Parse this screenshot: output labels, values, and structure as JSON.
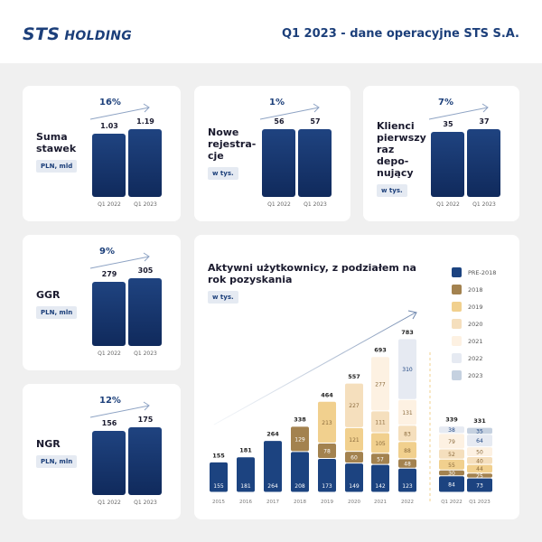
{
  "header": {
    "logo": "STS HOLDING",
    "title": "Q1 2023 - dane operacyjne STS S.A."
  },
  "kpis": [
    {
      "title": "Suma stawek",
      "unit": "PLN, mld",
      "change": "16%",
      "labels": [
        "Q1 2022",
        "Q1 2023"
      ],
      "values": [
        "1.03",
        "1.19"
      ],
      "nums": [
        1.03,
        1.19
      ]
    },
    {
      "title": "Nowe rejestra-cje",
      "unit": "w tys.",
      "change": "1%",
      "labels": [
        "Q1 2022",
        "Q1 2023"
      ],
      "values": [
        "56",
        "57"
      ],
      "nums": [
        56,
        57
      ]
    },
    {
      "title": "Klienci pierwszy raz depo-nujący",
      "unit": "w tys.",
      "change": "7%",
      "labels": [
        "Q1 2022",
        "Q1 2023"
      ],
      "values": [
        "35",
        "37"
      ],
      "nums": [
        35,
        37
      ]
    },
    {
      "title": "GGR",
      "unit": "PLN, mln",
      "change": "9%",
      "labels": [
        "Q1 2022",
        "Q1 2023"
      ],
      "values": [
        "279",
        "305"
      ],
      "nums": [
        279,
        305
      ]
    },
    {
      "title": "NGR",
      "unit": "PLN, mln",
      "change": "12%",
      "labels": [
        "Q1 2022",
        "Q1 2023"
      ],
      "values": [
        "156",
        "175"
      ],
      "nums": [
        156,
        175
      ]
    }
  ],
  "chart_data": {
    "type": "bar",
    "stacked": true,
    "title": "Aktywni użytkownicy, z podziałem na rok pozyskania",
    "unit": "w tys.",
    "legend_position": "right",
    "categories": [
      "2015",
      "2016",
      "2017",
      "2018",
      "2019",
      "2020",
      "2021",
      "2022",
      "Q1 2022",
      "Q1 2023"
    ],
    "totals": [
      155,
      181,
      264,
      338,
      464,
      557,
      693,
      783,
      339,
      331
    ],
    "series": [
      {
        "name": "PRE-2018",
        "color": "#1c4380",
        "values": [
          155,
          181,
          264,
          208,
          173,
          149,
          142,
          123,
          84,
          73
        ]
      },
      {
        "name": "2018",
        "color": "#a3824f",
        "values": [
          0,
          0,
          0,
          129,
          78,
          60,
          57,
          48,
          30,
          25
        ]
      },
      {
        "name": "2019",
        "color": "#f1d08e",
        "values": [
          0,
          0,
          0,
          0,
          213,
          121,
          105,
          88,
          55,
          44
        ]
      },
      {
        "name": "2020",
        "color": "#f5dfbd",
        "values": [
          0,
          0,
          0,
          0,
          0,
          227,
          111,
          83,
          52,
          40
        ]
      },
      {
        "name": "2021",
        "color": "#fdf1e2",
        "values": [
          0,
          0,
          0,
          0,
          0,
          0,
          277,
          131,
          79,
          50
        ]
      },
      {
        "name": "2022",
        "color": "#e6eaf2",
        "values": [
          0,
          0,
          0,
          0,
          0,
          0,
          0,
          310,
          38,
          64
        ]
      },
      {
        "name": "2023",
        "color": "#c5d1e0",
        "values": [
          0,
          0,
          0,
          0,
          0,
          0,
          0,
          0,
          0,
          35
        ]
      }
    ]
  }
}
